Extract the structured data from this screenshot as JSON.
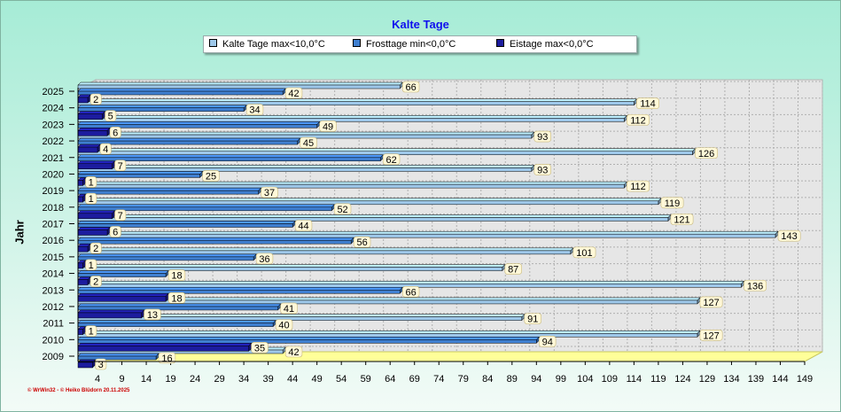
{
  "chart_data": {
    "type": "bar",
    "orientation": "horizontal",
    "title": "Kalte Tage",
    "ylabel": "Jahr",
    "xlabel": "",
    "categories": [
      "2009",
      "2010",
      "2011",
      "2012",
      "2013",
      "2014",
      "2015",
      "2016",
      "2017",
      "2018",
      "2019",
      "2020",
      "2021",
      "2022",
      "2023",
      "2024",
      "2025"
    ],
    "series": [
      {
        "name": "Kalte Tage max<10,0°C",
        "color": "#9ec8ea",
        "values": [
          42,
          127,
          91,
          127,
          136,
          87,
          101,
          143,
          121,
          119,
          112,
          93,
          126,
          93,
          112,
          114,
          66
        ]
      },
      {
        "name": "Frosttage min<0,0°C",
        "color": "#3f7fd0",
        "values": [
          16,
          94,
          40,
          41,
          66,
          18,
          36,
          56,
          44,
          52,
          37,
          25,
          62,
          45,
          49,
          34,
          42
        ]
      },
      {
        "name": "Eistage max<0,0°C",
        "color": "#1c1c9e",
        "values": [
          3,
          35,
          1,
          13,
          18,
          2,
          1,
          2,
          6,
          7,
          1,
          1,
          7,
          4,
          6,
          5,
          2
        ]
      }
    ],
    "xlim": [
      0,
      149
    ],
    "xticks": [
      4,
      9,
      14,
      19,
      24,
      29,
      34,
      39,
      44,
      49,
      54,
      59,
      64,
      69,
      74,
      79,
      84,
      89,
      94,
      99,
      104,
      109,
      114,
      119,
      124,
      129,
      134,
      139,
      144,
      149
    ],
    "grid": true,
    "legend_position": "top-center"
  },
  "footer": "© WrWin32 - © Heiko Blüdorn 20.11.2025"
}
